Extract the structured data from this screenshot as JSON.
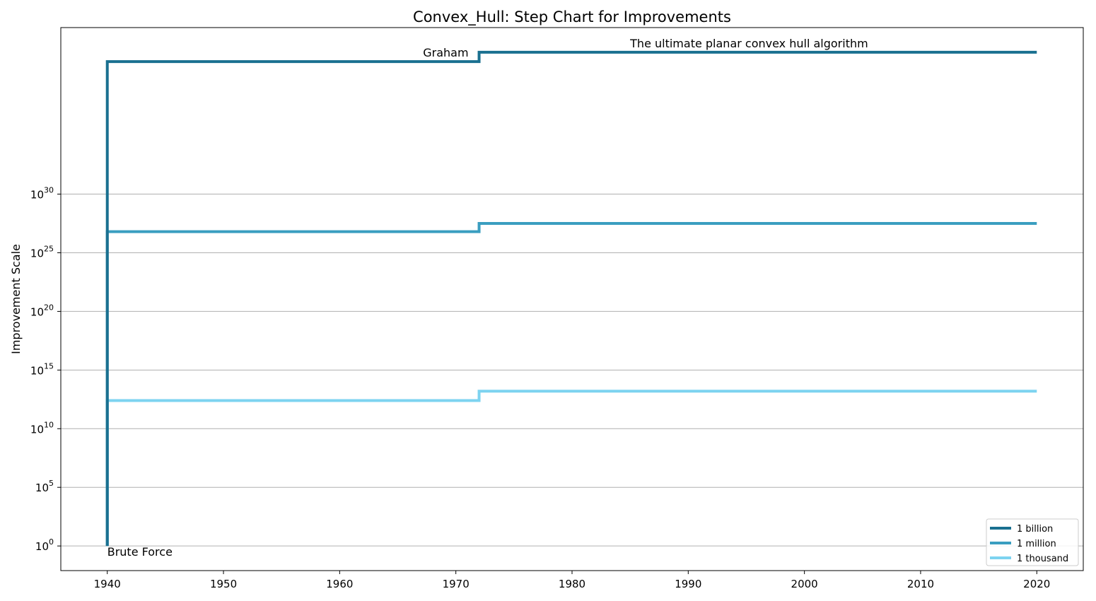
{
  "chart_data": {
    "type": "line",
    "step": true,
    "title": "Convex_Hull: Step Chart for Improvements",
    "xlabel": "",
    "ylabel": "Improvement Scale",
    "y_scale": "log",
    "xlim": [
      1936,
      2024
    ],
    "ylim_exp": [
      -2.1,
      44.2
    ],
    "x_ticks": [
      1940,
      1950,
      1960,
      1970,
      1980,
      1990,
      2000,
      2010,
      2020
    ],
    "y_ticks": [
      {
        "base": "10",
        "exp": "0",
        "value_exp": 0
      },
      {
        "base": "10",
        "exp": "5",
        "value_exp": 5
      },
      {
        "base": "10",
        "exp": "10",
        "value_exp": 10
      },
      {
        "base": "10",
        "exp": "15",
        "value_exp": 15
      },
      {
        "base": "10",
        "exp": "20",
        "value_exp": 20
      },
      {
        "base": "10",
        "exp": "25",
        "value_exp": 25
      },
      {
        "base": "10",
        "exp": "30",
        "value_exp": 30
      }
    ],
    "grid": {
      "y": true,
      "x": false
    },
    "legend_position": "bottom-right",
    "series": [
      {
        "name": "1 billion",
        "color": "#1a7090",
        "x": [
          1940,
          1940,
          1972,
          1972,
          2020
        ],
        "y_exp": [
          0,
          41.3,
          41.3,
          42.1,
          42.1
        ]
      },
      {
        "name": "1 million",
        "color": "#3a9ec0",
        "x": [
          1940,
          1940,
          1972,
          1972,
          2020
        ],
        "y_exp": [
          0,
          26.8,
          26.8,
          27.5,
          27.5
        ]
      },
      {
        "name": "1 thousand",
        "color": "#7dd3f0",
        "x": [
          1940,
          1940,
          1972,
          1972,
          2020
        ],
        "y_exp": [
          0,
          12.4,
          12.4,
          13.2,
          13.2
        ]
      }
    ],
    "annotations": [
      {
        "text": "Brute Force",
        "x": 1940,
        "y_exp": 0,
        "anchor": "start",
        "position": "below"
      },
      {
        "text": "Graham",
        "x": 1972,
        "y_exp": 41.3,
        "anchor": "end",
        "position": "above"
      },
      {
        "text": "The ultimate planar convex hull algorithm",
        "x": 1985,
        "y_exp": 42.1,
        "anchor": "start",
        "position": "above"
      }
    ]
  }
}
